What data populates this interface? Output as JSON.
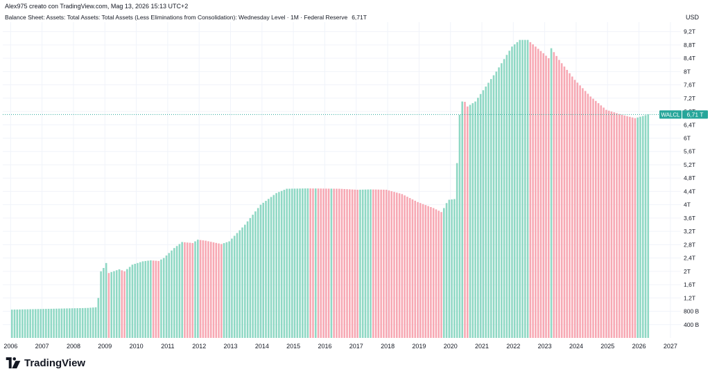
{
  "header": {
    "credit": "Alex975 creato con TradingView.com, Mag 13, 2026 15:13 UTC+2",
    "legend_title": "Balance Sheet: Assets: Total Assets: Total Assets (Less Eliminations from Consolidation): Wednesday Level · 1M · Federal Reserve",
    "legend_value": "6,71T",
    "currency": "USD"
  },
  "brand": {
    "name": "TradingView",
    "logo_icon": "tradingview-logo-icon"
  },
  "colors": {
    "up": "#8fd8c4",
    "down": "#f7a8b3",
    "accent": "#26a69a",
    "grid": "#f0f3fa",
    "axis_text": "#131722"
  },
  "chart_data": {
    "type": "bar",
    "title": "Balance Sheet: Assets: Total Assets: Total Assets (Less Eliminations from Consolidation): Wednesday Level · 1M · Federal Reserve",
    "xlabel": "",
    "ylabel": "USD",
    "value_unit": "trillion USD",
    "x_start": "2006-01",
    "x_end": "2026-04",
    "interval": "1M",
    "xlim": [
      "2005-10",
      "2027-05"
    ],
    "ylim": [
      0.0,
      9.4
    ],
    "x_ticks": [
      "2006",
      "2007",
      "2008",
      "2009",
      "2010",
      "2011",
      "2012",
      "2013",
      "2014",
      "2015",
      "2016",
      "2017",
      "2018",
      "2019",
      "2020",
      "2021",
      "2022",
      "2023",
      "2024",
      "2025",
      "2026",
      "2027"
    ],
    "y_ticks": [
      {
        "v": 0.4,
        "label": "400 B"
      },
      {
        "v": 0.8,
        "label": "800 B"
      },
      {
        "v": 1.2,
        "label": "1,2T"
      },
      {
        "v": 1.6,
        "label": "1,6T"
      },
      {
        "v": 2.0,
        "label": "2T"
      },
      {
        "v": 2.4,
        "label": "2,4T"
      },
      {
        "v": 2.8,
        "label": "2,8T"
      },
      {
        "v": 3.2,
        "label": "3,2T"
      },
      {
        "v": 3.6,
        "label": "3,6T"
      },
      {
        "v": 4.0,
        "label": "4T"
      },
      {
        "v": 4.4,
        "label": "4,4T"
      },
      {
        "v": 4.8,
        "label": "4,8T"
      },
      {
        "v": 5.2,
        "label": "5,2T"
      },
      {
        "v": 5.6,
        "label": "5,6T"
      },
      {
        "v": 6.0,
        "label": "6T"
      },
      {
        "v": 6.4,
        "label": "6,4T"
      },
      {
        "v": 6.8,
        "label": "6,8T"
      },
      {
        "v": 7.2,
        "label": "7,2T"
      },
      {
        "v": 7.6,
        "label": "7,6T"
      },
      {
        "v": 8.0,
        "label": "8T"
      },
      {
        "v": 8.4,
        "label": "8,4T"
      },
      {
        "v": 8.8,
        "label": "8,8T"
      },
      {
        "v": 9.2,
        "label": "9,2T"
      }
    ],
    "last_value": 6.71,
    "last_label": "6,71 T",
    "series_label": "WALCL",
    "grid": true,
    "legend": "top-left",
    "anchors": [
      [
        "2006-01",
        0.85
      ],
      [
        "2007-01",
        0.87
      ],
      [
        "2008-06",
        0.9
      ],
      [
        "2008-09",
        0.92
      ],
      [
        "2008-10",
        1.2
      ],
      [
        "2008-11",
        2.0
      ],
      [
        "2008-12",
        2.1
      ],
      [
        "2009-01",
        2.25
      ],
      [
        "2009-02",
        1.95
      ],
      [
        "2009-06",
        2.06
      ],
      [
        "2009-08",
        2.0
      ],
      [
        "2009-11",
        2.2
      ],
      [
        "2010-03",
        2.3
      ],
      [
        "2010-06",
        2.33
      ],
      [
        "2010-09",
        2.31
      ],
      [
        "2010-11",
        2.4
      ],
      [
        "2011-03",
        2.7
      ],
      [
        "2011-06",
        2.88
      ],
      [
        "2011-10",
        2.85
      ],
      [
        "2011-12",
        2.95
      ],
      [
        "2012-03",
        2.92
      ],
      [
        "2012-09",
        2.82
      ],
      [
        "2012-12",
        2.9
      ],
      [
        "2013-06",
        3.4
      ],
      [
        "2013-12",
        4.0
      ],
      [
        "2014-06",
        4.35
      ],
      [
        "2014-10",
        4.48
      ],
      [
        "2015-06",
        4.49
      ],
      [
        "2016-06",
        4.48
      ],
      [
        "2017-01",
        4.45
      ],
      [
        "2017-06",
        4.46
      ],
      [
        "2017-12",
        4.45
      ],
      [
        "2018-06",
        4.32
      ],
      [
        "2018-12",
        4.08
      ],
      [
        "2019-06",
        3.9
      ],
      [
        "2019-09",
        3.78
      ],
      [
        "2019-10",
        3.9
      ],
      [
        "2019-11",
        4.05
      ],
      [
        "2019-12",
        4.15
      ],
      [
        "2020-02",
        4.17
      ],
      [
        "2020-03",
        5.25
      ],
      [
        "2020-04",
        6.7
      ],
      [
        "2020-05",
        7.1
      ],
      [
        "2020-06",
        7.09
      ],
      [
        "2020-07",
        6.95
      ],
      [
        "2020-10",
        7.1
      ],
      [
        "2021-06",
        8.0
      ],
      [
        "2021-12",
        8.75
      ],
      [
        "2022-03",
        8.95
      ],
      [
        "2022-06",
        8.95
      ],
      [
        "2022-12",
        8.55
      ],
      [
        "2023-02",
        8.4
      ],
      [
        "2023-03",
        8.7
      ],
      [
        "2023-06",
        8.35
      ],
      [
        "2023-12",
        7.75
      ],
      [
        "2024-06",
        7.25
      ],
      [
        "2024-12",
        6.85
      ],
      [
        "2025-06",
        6.7
      ],
      [
        "2025-11",
        6.6
      ],
      [
        "2025-12",
        6.62
      ],
      [
        "2026-04",
        6.71
      ]
    ]
  }
}
